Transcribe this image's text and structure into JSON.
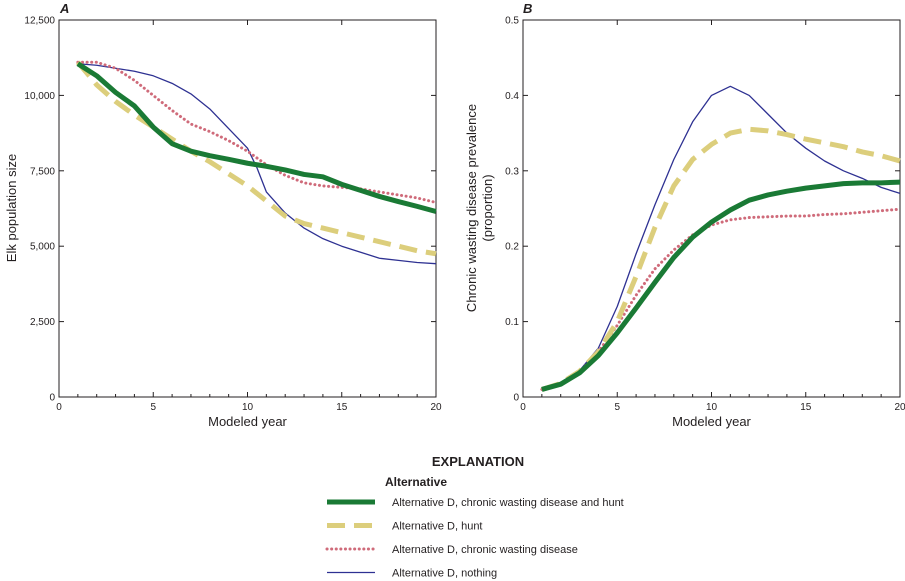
{
  "chart_data": [
    {
      "type": "line",
      "panel_label": "A",
      "xlabel": "Modeled year",
      "ylabel": "Elk population size",
      "xlim": [
        0,
        20
      ],
      "ylim": [
        0,
        12500
      ],
      "xticks": [
        0,
        5,
        10,
        15,
        20
      ],
      "xtick_labels": [
        "0",
        "5",
        "10",
        "15",
        "20"
      ],
      "yticks": [
        0,
        2500,
        5000,
        7500,
        10000,
        12500
      ],
      "ytick_labels": [
        "0",
        "2,500",
        "5,000",
        "7,500",
        "10,000",
        "12,500"
      ],
      "grid": false,
      "series": [
        {
          "name": "Alternative D, chronic wasting disease and hunt",
          "color": "#1a7a35",
          "style": "thick-solid",
          "x": [
            1,
            2,
            3,
            4,
            5,
            6,
            7,
            8,
            9,
            10,
            11,
            12,
            13,
            14,
            15,
            16,
            17,
            18,
            19,
            20
          ],
          "y": [
            11050,
            10650,
            10100,
            9650,
            8950,
            8400,
            8150,
            8000,
            7880,
            7750,
            7650,
            7530,
            7380,
            7300,
            7050,
            6850,
            6650,
            6480,
            6320,
            6150
          ]
        },
        {
          "name": "Alternative D, hunt",
          "color": "#dcce7c",
          "style": "thick-dashed",
          "x": [
            1,
            2,
            3,
            4,
            5,
            6,
            7,
            8,
            9,
            10,
            11,
            12,
            13,
            14,
            15,
            16,
            17,
            18,
            19,
            20
          ],
          "y": [
            11100,
            10350,
            9800,
            9350,
            8950,
            8550,
            8150,
            7800,
            7400,
            7000,
            6500,
            6000,
            5750,
            5600,
            5450,
            5300,
            5150,
            5000,
            4850,
            4750
          ]
        },
        {
          "name": "Alternative D, chronic wasting disease",
          "color": "#cf6b7a",
          "style": "dotted",
          "x": [
            1,
            2,
            3,
            4,
            5,
            6,
            7,
            8,
            9,
            10,
            11,
            12,
            13,
            14,
            15,
            16,
            17,
            18,
            19,
            20
          ],
          "y": [
            11100,
            11100,
            10900,
            10500,
            10000,
            9500,
            9050,
            8800,
            8500,
            8150,
            7700,
            7350,
            7100,
            7000,
            6950,
            6900,
            6800,
            6700,
            6600,
            6450
          ]
        },
        {
          "name": "Alternative D, nothing",
          "color": "#2e3192",
          "style": "thin-solid",
          "x": [
            1,
            2,
            3,
            4,
            5,
            6,
            7,
            8,
            9,
            10,
            10.5,
            11,
            12,
            13,
            14,
            15,
            16,
            17,
            18,
            19,
            20
          ],
          "y": [
            11050,
            11000,
            10900,
            10800,
            10650,
            10400,
            10050,
            9550,
            8900,
            8250,
            7600,
            6800,
            6100,
            5600,
            5250,
            5000,
            4800,
            4600,
            4530,
            4460,
            4420
          ]
        }
      ]
    },
    {
      "type": "line",
      "panel_label": "B",
      "xlabel": "Modeled year",
      "ylabel": "Chronic wasting disease prevalence",
      "ylabel2": "(proportion)",
      "xlim": [
        0,
        20
      ],
      "ylim": [
        0,
        0.5
      ],
      "xticks": [
        0,
        5,
        10,
        15,
        20
      ],
      "xtick_labels": [
        "0",
        "5",
        "10",
        "15",
        "20"
      ],
      "yticks": [
        0,
        0.1,
        0.2,
        0.3,
        0.4,
        0.5
      ],
      "ytick_labels": [
        "0",
        "0.1",
        "0.2",
        "0.3",
        "0.4",
        "0.5"
      ],
      "grid": false,
      "series": [
        {
          "name": "Alternative D, chronic wasting disease and hunt",
          "color": "#1a7a35",
          "style": "thick-solid",
          "x": [
            1,
            2,
            3,
            4,
            5,
            6,
            7,
            8,
            9,
            10,
            11,
            12,
            13,
            14,
            15,
            16,
            17,
            18,
            19,
            20
          ],
          "y": [
            0.01,
            0.017,
            0.032,
            0.055,
            0.085,
            0.118,
            0.152,
            0.185,
            0.212,
            0.232,
            0.248,
            0.261,
            0.268,
            0.273,
            0.277,
            0.28,
            0.283,
            0.284,
            0.284,
            0.285
          ]
        },
        {
          "name": "Alternative D, hunt",
          "color": "#dcce7c",
          "style": "thick-dashed",
          "x": [
            1,
            2,
            3,
            4,
            5,
            6,
            7,
            8,
            9,
            10,
            11,
            12,
            13,
            14,
            15,
            16,
            17,
            18,
            19,
            20
          ],
          "y": [
            0.01,
            0.018,
            0.034,
            0.06,
            0.1,
            0.16,
            0.225,
            0.28,
            0.315,
            0.335,
            0.35,
            0.355,
            0.353,
            0.348,
            0.342,
            0.337,
            0.332,
            0.325,
            0.32,
            0.313
          ]
        },
        {
          "name": "Alternative D, chronic wasting disease",
          "color": "#cf6b7a",
          "style": "dotted",
          "x": [
            1,
            2,
            3,
            4,
            5,
            6,
            7,
            8,
            9,
            10,
            11,
            12,
            13,
            14,
            15,
            16,
            17,
            18,
            19,
            20
          ],
          "y": [
            0.01,
            0.018,
            0.033,
            0.06,
            0.095,
            0.135,
            0.17,
            0.195,
            0.215,
            0.228,
            0.235,
            0.238,
            0.239,
            0.24,
            0.24,
            0.242,
            0.243,
            0.245,
            0.247,
            0.249
          ]
        },
        {
          "name": "Alternative D, nothing",
          "color": "#2e3192",
          "style": "thin-solid",
          "x": [
            1,
            2,
            3,
            4,
            5,
            6,
            7,
            8,
            9,
            10,
            11,
            12,
            13,
            14,
            15,
            16,
            17,
            18,
            19,
            20
          ],
          "y": [
            0.01,
            0.018,
            0.035,
            0.065,
            0.12,
            0.19,
            0.255,
            0.315,
            0.365,
            0.4,
            0.412,
            0.4,
            0.375,
            0.35,
            0.33,
            0.313,
            0.3,
            0.29,
            0.278,
            0.27
          ]
        }
      ]
    }
  ],
  "legend": {
    "title": "EXPLANATION",
    "subtitle": "Alternative",
    "items": [
      {
        "label": "Alternative D, chronic wasting disease and hunt",
        "color": "#1a7a35",
        "style": "thick-solid"
      },
      {
        "label": "Alternative D, hunt",
        "color": "#dcce7c",
        "style": "thick-dashed"
      },
      {
        "label": "Alternative D, chronic wasting disease",
        "color": "#cf6b7a",
        "style": "dotted"
      },
      {
        "label": "Alternative D, nothing",
        "color": "#2e3192",
        "style": "thin-solid"
      }
    ]
  }
}
